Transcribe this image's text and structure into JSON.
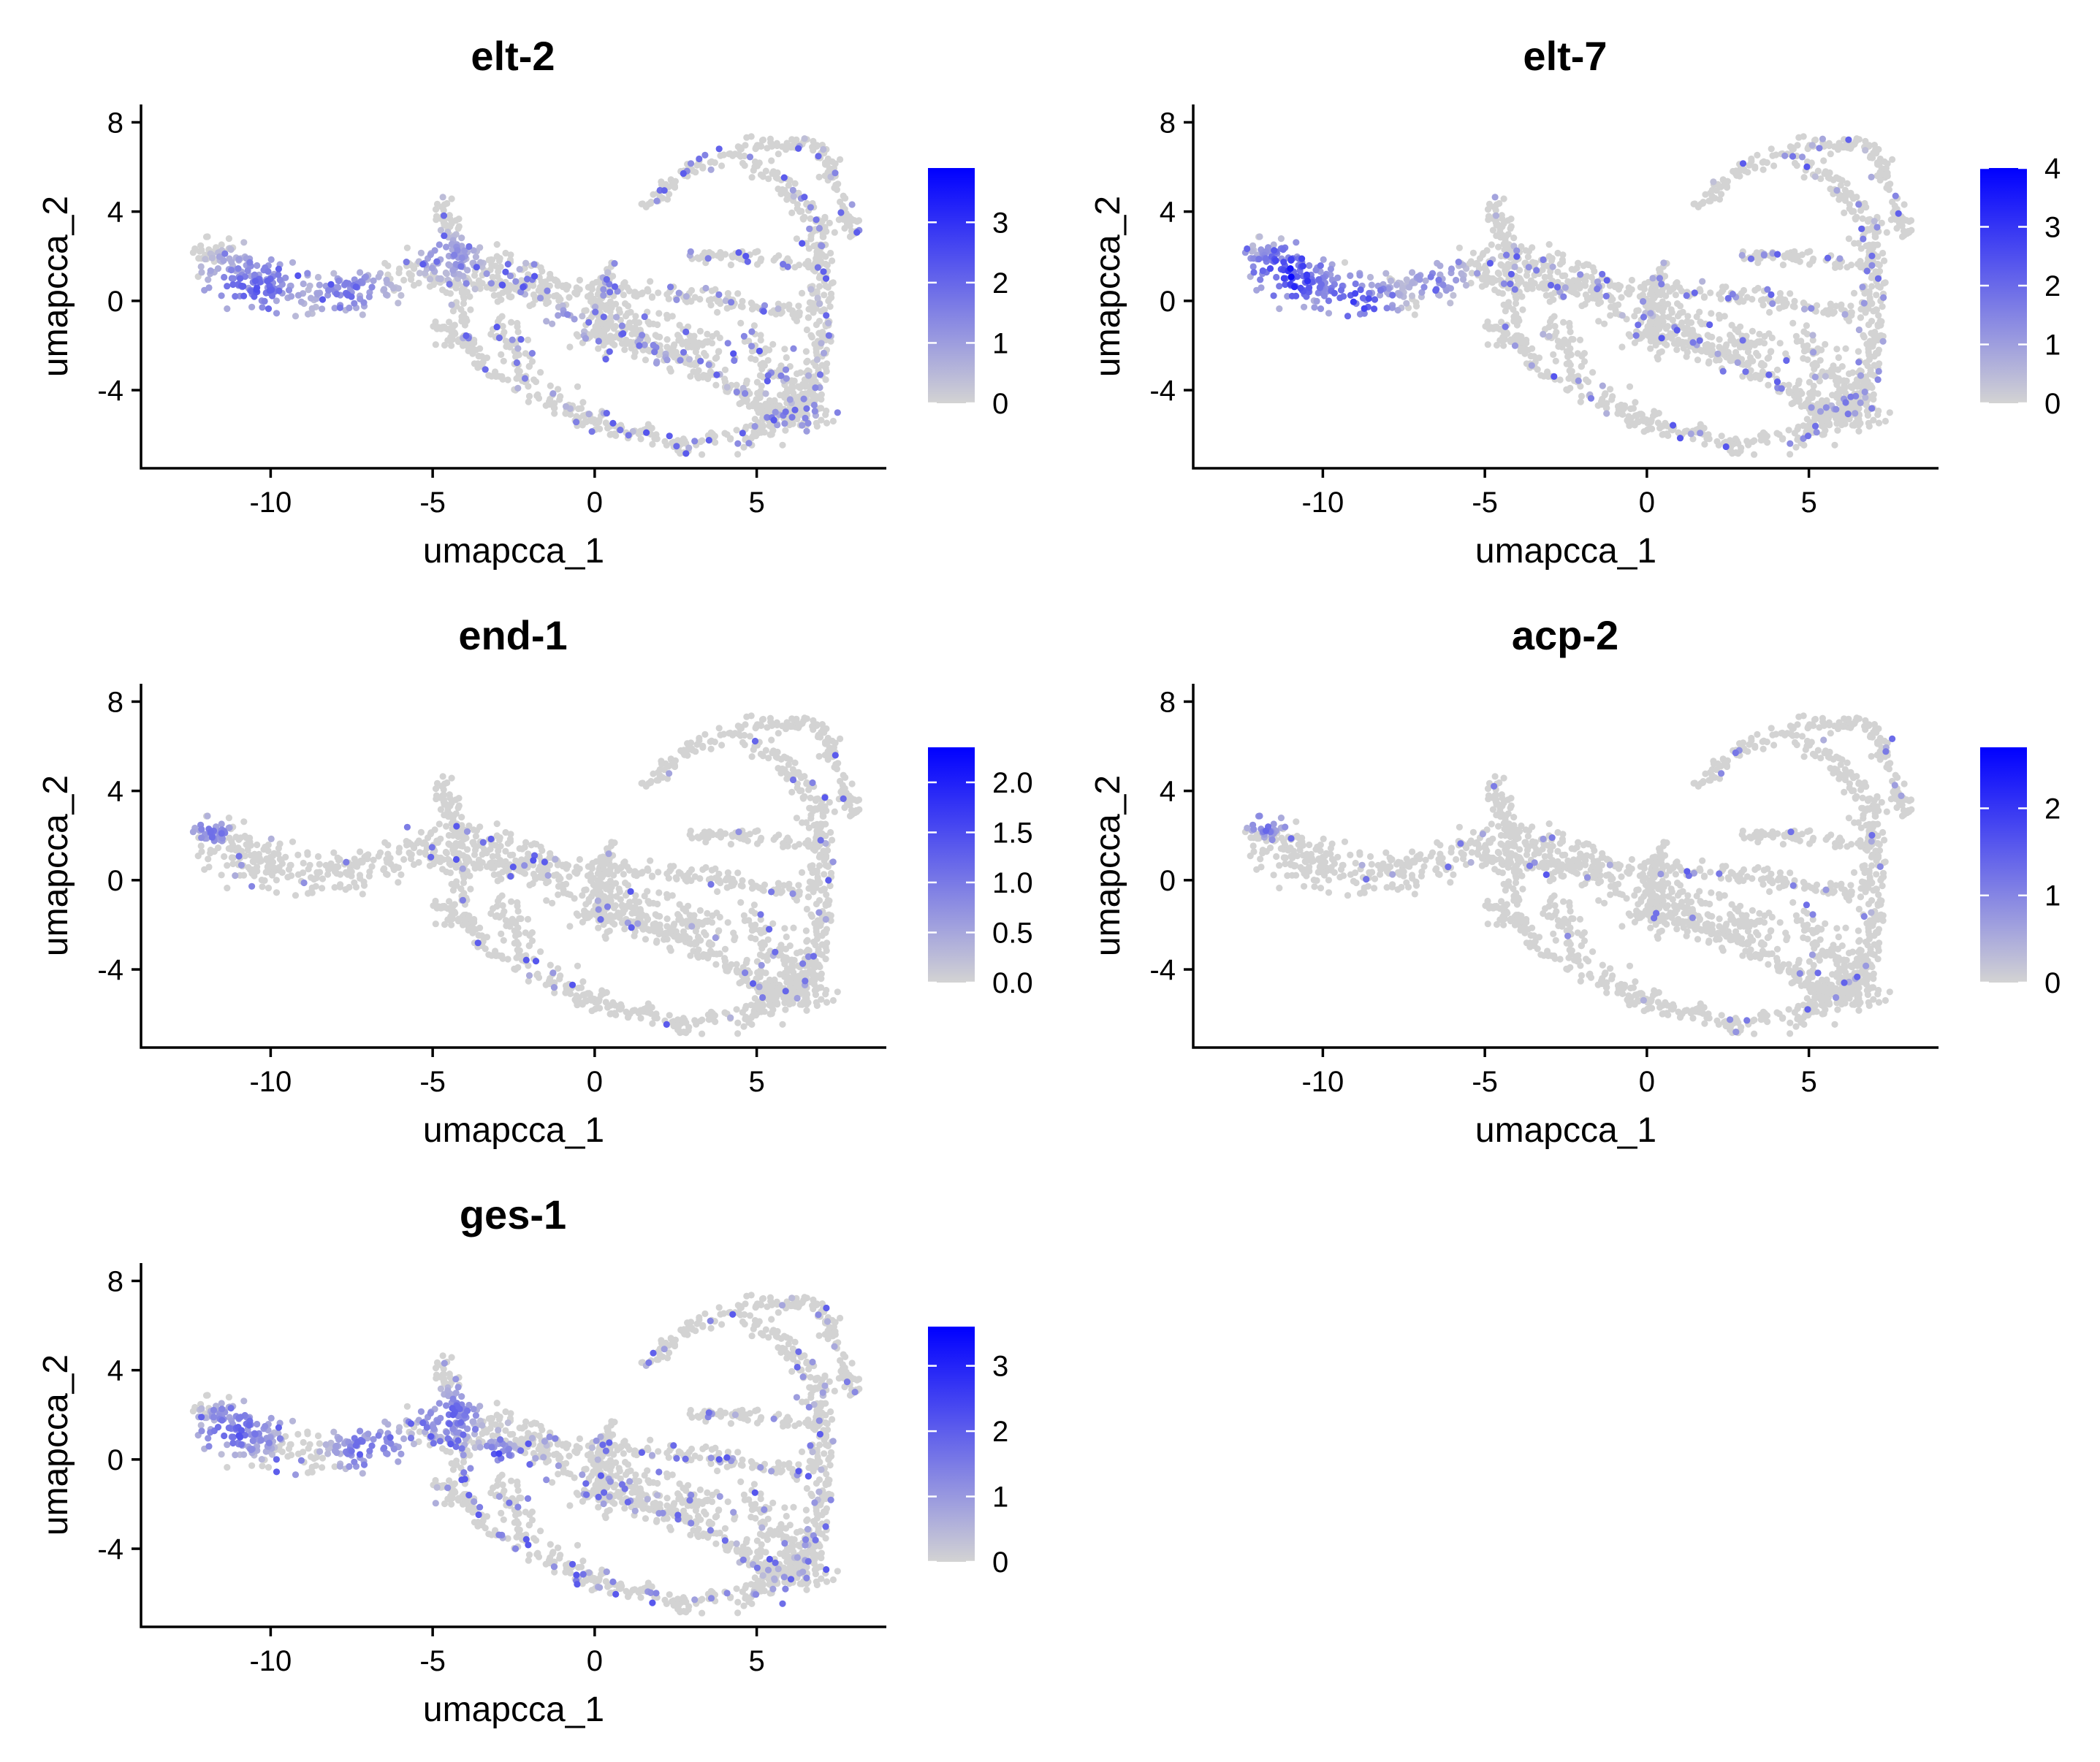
{
  "chart_data": [
    {
      "type": "scatter",
      "title": "elt-2",
      "xlabel": "umapcca_1",
      "ylabel": "umapcca_2",
      "xlim": [
        -14,
        9
      ],
      "ylim": [
        -7.5,
        8.8
      ],
      "xticks": [
        -10,
        -5,
        0,
        5
      ],
      "yticks": [
        8,
        4,
        0,
        -4
      ],
      "legend": {
        "position": "right",
        "scale_max": 3.9,
        "ticks": [
          0,
          1,
          2,
          3
        ],
        "low_color": "#d3d3d3",
        "high_color": "#0000ff"
      },
      "expression_hotspots": [
        {
          "x": -10.5,
          "y": 0.5,
          "level": 1.7,
          "spread": 1.6
        },
        {
          "x": -7.5,
          "y": 0.3,
          "level": 1.4,
          "spread": 1.2
        },
        {
          "x": -4.5,
          "y": 2.0,
          "level": 1.1,
          "spread": 1.0
        },
        {
          "x": -1.0,
          "y": -0.8,
          "level": 1.3,
          "spread": 0.5
        }
      ],
      "noise": 0.15
    },
    {
      "type": "scatter",
      "title": "elt-7",
      "xlabel": "umapcca_1",
      "ylabel": "umapcca_2",
      "xlim": [
        -14,
        9
      ],
      "ylim": [
        -7.5,
        8.8
      ],
      "xticks": [
        -10,
        -5,
        0,
        5
      ],
      "yticks": [
        8,
        4,
        0,
        -4
      ],
      "legend": {
        "position": "right",
        "scale_max": 4.0,
        "ticks": [
          0,
          1,
          2,
          3,
          4
        ],
        "low_color": "#d3d3d3",
        "high_color": "#0000ff"
      },
      "expression_hotspots": [
        {
          "x": -11.0,
          "y": 1.2,
          "level": 2.8,
          "spread": 1.3
        },
        {
          "x": -9.0,
          "y": 0.0,
          "level": 2.3,
          "spread": 1.2
        },
        {
          "x": -6.5,
          "y": 1.0,
          "level": 1.2,
          "spread": 1.0
        }
      ],
      "noise": 0.12
    },
    {
      "type": "scatter",
      "title": "end-1",
      "xlabel": "umapcca_1",
      "ylabel": "umapcca_2",
      "xlim": [
        -14,
        9
      ],
      "ylim": [
        -7.5,
        8.8
      ],
      "xticks": [
        -10,
        -5,
        0,
        5
      ],
      "yticks": [
        8,
        4,
        0,
        -4
      ],
      "legend": {
        "position": "right",
        "scale_max": 2.35,
        "ticks": [
          0.0,
          0.5,
          1.0,
          1.5,
          2.0
        ],
        "tick_format": 1,
        "low_color": "#d3d3d3",
        "high_color": "#0000ff"
      },
      "expression_hotspots": [
        {
          "x": -11.8,
          "y": 2.2,
          "level": 1.0,
          "spread": 0.6
        },
        {
          "x": -10.0,
          "y": 2.4,
          "level": 1.2,
          "spread": 0.5
        }
      ],
      "noise": 0.06
    },
    {
      "type": "scatter",
      "title": "acp-2",
      "xlabel": "umapcca_1",
      "ylabel": "umapcca_2",
      "xlim": [
        -14,
        9
      ],
      "ylim": [
        -7.5,
        8.8
      ],
      "xticks": [
        -10,
        -5,
        0,
        5
      ],
      "yticks": [
        8,
        4,
        0,
        -4
      ],
      "legend": {
        "position": "right",
        "scale_max": 2.7,
        "ticks": [
          0,
          1,
          2
        ],
        "low_color": "#d3d3d3",
        "high_color": "#0000ff"
      },
      "expression_hotspots": [
        {
          "x": -11.8,
          "y": 2.5,
          "level": 1.5,
          "spread": 0.5
        },
        {
          "x": 6.0,
          "y": 6.2,
          "level": 1.8,
          "spread": 0.3
        }
      ],
      "noise": 0.04
    },
    {
      "type": "scatter",
      "title": "ges-1",
      "xlabel": "umapcca_1",
      "ylabel": "umapcca_2",
      "xlim": [
        -14,
        9
      ],
      "ylim": [
        -7.5,
        8.8
      ],
      "xticks": [
        -10,
        -5,
        0,
        5
      ],
      "yticks": [
        8,
        4,
        0,
        -4
      ],
      "legend": {
        "position": "right",
        "scale_max": 3.6,
        "ticks": [
          0,
          1,
          2,
          3
        ],
        "low_color": "#d3d3d3",
        "high_color": "#0000ff"
      },
      "expression_hotspots": [
        {
          "x": -11.0,
          "y": 1.3,
          "level": 1.6,
          "spread": 1.2
        },
        {
          "x": -9.5,
          "y": 2.2,
          "level": 2.6,
          "spread": 0.5
        },
        {
          "x": -7.0,
          "y": 0.5,
          "level": 1.4,
          "spread": 1.2
        },
        {
          "x": -4.5,
          "y": 2.0,
          "level": 1.6,
          "spread": 1.0
        },
        {
          "x": -3.0,
          "y": 0.2,
          "level": 1.8,
          "spread": 0.6
        }
      ],
      "noise": 0.15
    }
  ],
  "embedding_shape": {
    "curves": [
      {
        "pts": [
          [
            -12,
            2.2
          ],
          [
            -10.5,
            0.5
          ],
          [
            -8.5,
            0.2
          ],
          [
            -6.5,
            0.8
          ],
          [
            -4.5,
            1.8
          ],
          [
            -3,
            1.5
          ],
          [
            -1.5,
            0.5
          ],
          [
            0,
            -0.5
          ],
          [
            2,
            -1.5
          ],
          [
            4,
            -2.5
          ]
        ],
        "width": 1.1
      },
      {
        "pts": [
          [
            -12,
            2.5
          ],
          [
            -11,
            1.5
          ],
          [
            -9.5,
            0.5
          ]
        ],
        "width": 0.9
      },
      {
        "pts": [
          [
            -4.8,
            4.3
          ],
          [
            -4.3,
            2.5
          ],
          [
            -4,
            0
          ],
          [
            -4.5,
            -2
          ]
        ],
        "width": 0.5
      },
      {
        "pts": [
          [
            -5,
            1
          ],
          [
            -2.5,
            0.5
          ],
          [
            0,
            0.6
          ],
          [
            3,
            0.2
          ],
          [
            6.5,
            -0.6
          ]
        ],
        "width": 0.45
      },
      {
        "pts": [
          [
            -2.8,
            -1
          ],
          [
            -2,
            -4
          ],
          [
            0,
            -5.5
          ],
          [
            2.5,
            -6.5
          ],
          [
            5,
            -6
          ],
          [
            6.5,
            -4
          ]
        ],
        "width": 0.6
      },
      {
        "pts": [
          [
            1.5,
            4.2
          ],
          [
            3,
            6
          ],
          [
            5,
            7
          ],
          [
            7,
            7
          ],
          [
            7.5,
            5
          ],
          [
            8,
            3
          ]
        ],
        "width": 0.35
      },
      {
        "pts": [
          [
            4.5,
            6.5
          ],
          [
            6,
            5
          ],
          [
            7,
            3
          ],
          [
            7,
            0
          ],
          [
            6.8,
            -3
          ],
          [
            6.5,
            -5
          ]
        ],
        "width": 0.5
      },
      {
        "pts": [
          [
            3,
            2
          ],
          [
            5,
            2
          ],
          [
            7,
            1.5
          ]
        ],
        "width": 0.35
      },
      {
        "pts": [
          [
            -0.5,
            -1.5
          ],
          [
            1.5,
            -2
          ],
          [
            3,
            -3
          ],
          [
            5,
            -4.5
          ],
          [
            6.5,
            -5.5
          ]
        ],
        "width": 0.4
      },
      {
        "pts": [
          [
            4.5,
            -1.5
          ],
          [
            5.5,
            -3
          ],
          [
            6.5,
            -4
          ],
          [
            7,
            -5
          ],
          [
            5.5,
            -5.5
          ],
          [
            4.8,
            -3.8
          ]
        ],
        "width": 0.8
      },
      {
        "pts": [
          [
            0.5,
            1.8
          ],
          [
            0.2,
            0
          ],
          [
            0.3,
            -2.5
          ]
        ],
        "width": 0.3
      },
      {
        "pts": [
          [
            -5,
            -1
          ],
          [
            -3.8,
            -2
          ],
          [
            -3,
            -3.5
          ]
        ],
        "width": 0.3
      }
    ],
    "n_points": 2100
  }
}
